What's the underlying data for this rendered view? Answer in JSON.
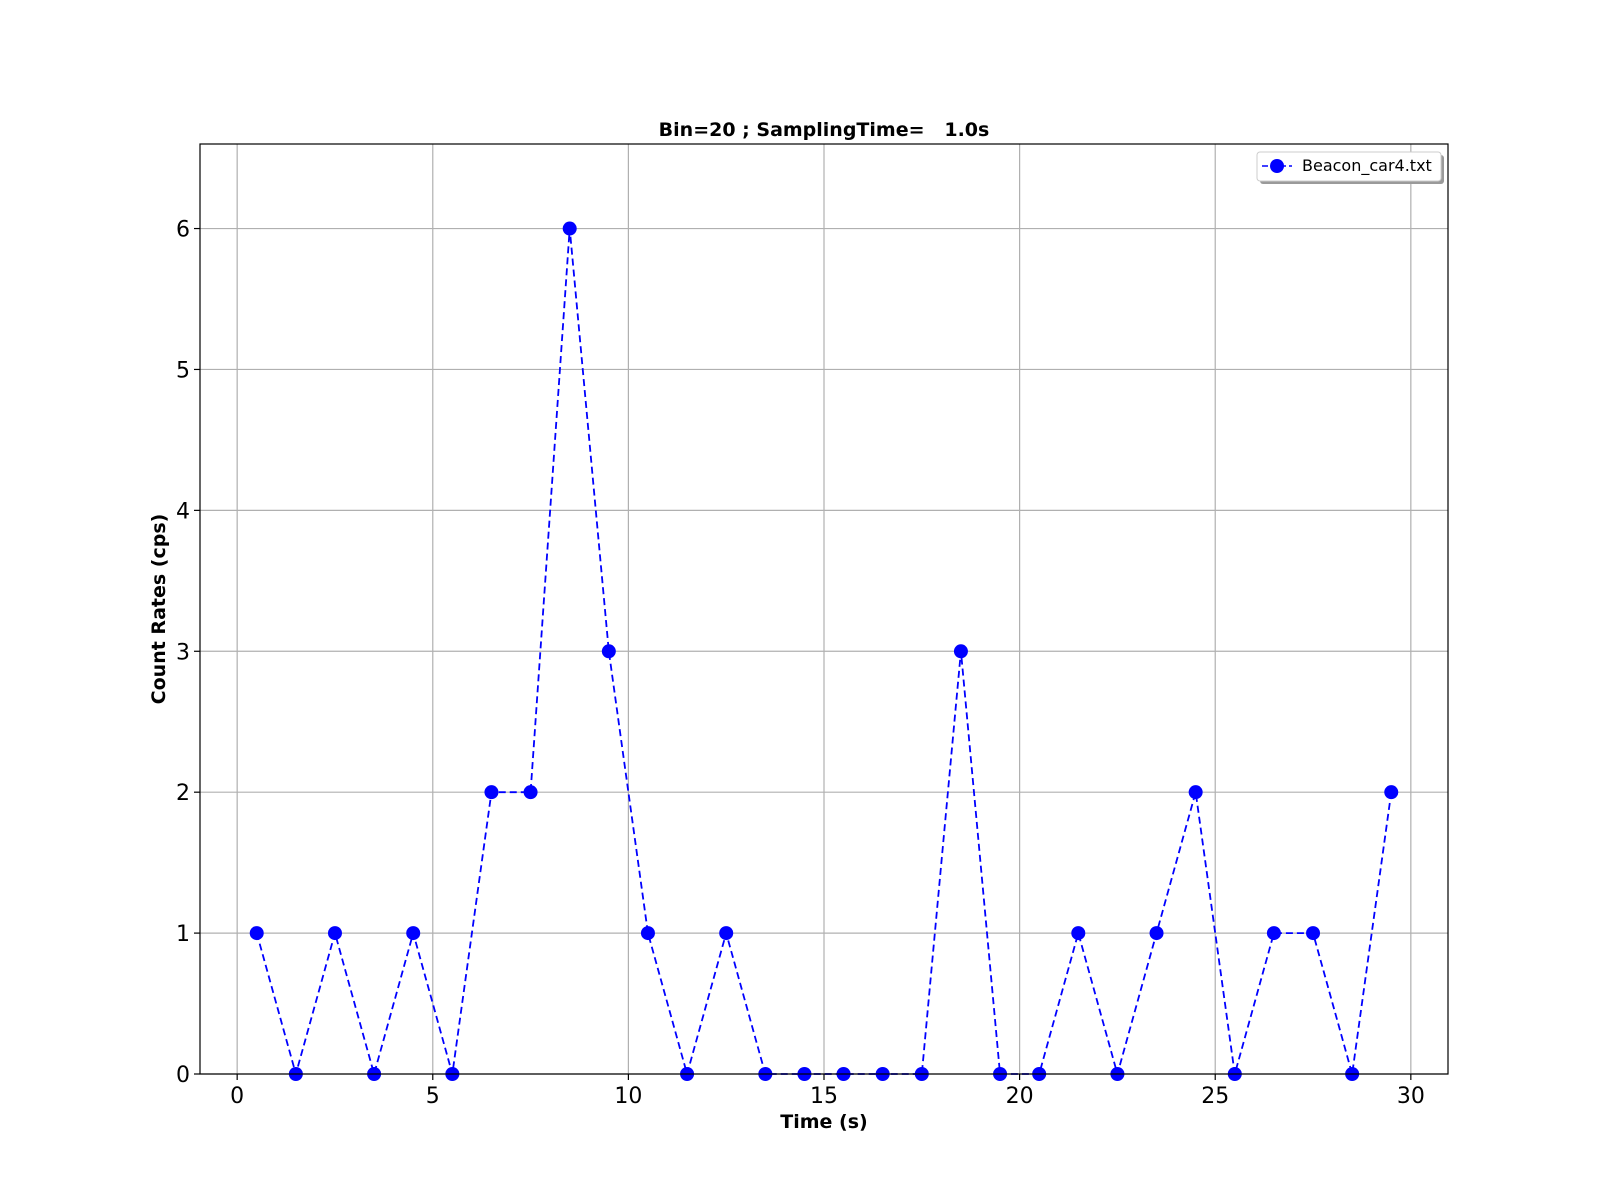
{
  "chart_data": {
    "type": "line",
    "title": "Bin=20 ; SamplingTime=   1.0s",
    "xlabel": "Time (s)",
    "ylabel": "Count Rates (cps)",
    "xlim": [
      -0.95,
      30.95
    ],
    "ylim": [
      0,
      6.6
    ],
    "xticks": [
      0,
      5,
      10,
      15,
      20,
      25,
      30
    ],
    "yticks": [
      0,
      1,
      2,
      3,
      4,
      5,
      6
    ],
    "grid": true,
    "legend_position": "top-right",
    "series": [
      {
        "name": "Beacon_car4.txt",
        "color": "#0000ff",
        "line_style": "dashed",
        "marker": "circle",
        "x": [
          0.5,
          1.5,
          2.5,
          3.5,
          4.5,
          5.5,
          6.5,
          7.5,
          8.5,
          9.5,
          10.5,
          11.5,
          12.5,
          13.5,
          14.5,
          15.5,
          16.5,
          17.5,
          18.5,
          19.5,
          20.5,
          21.5,
          22.5,
          23.5,
          24.5,
          25.5,
          26.5,
          27.5,
          28.5,
          29.5
        ],
        "y": [
          1,
          0,
          1,
          0,
          1,
          0,
          2,
          2,
          6,
          3,
          1,
          0,
          1,
          0,
          0,
          0,
          0,
          0,
          3,
          0,
          0,
          1,
          0,
          1,
          2,
          0,
          1,
          1,
          0,
          2
        ]
      }
    ]
  }
}
